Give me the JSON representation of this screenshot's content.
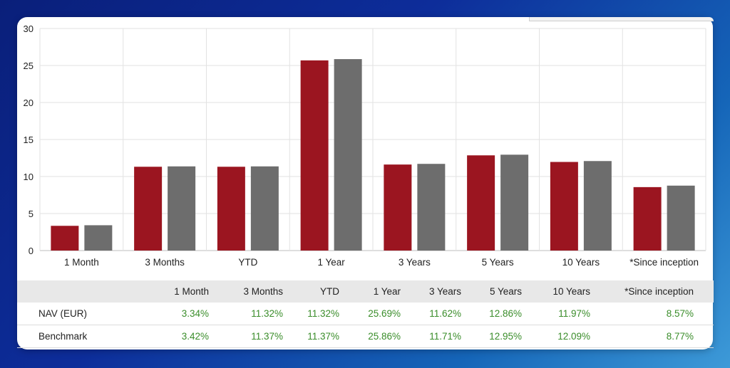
{
  "chart_data": {
    "type": "bar",
    "categories": [
      "1 Month",
      "3 Months",
      "YTD",
      "1 Year",
      "3 Years",
      "5 Years",
      "10 Years",
      "*Since inception"
    ],
    "series": [
      {
        "values": [
          3.34,
          11.32,
          11.32,
          25.69,
          11.62,
          12.86,
          11.97,
          8.57
        ],
        "color": "#9b1520"
      },
      {
        "values": [
          3.42,
          11.37,
          11.37,
          25.86,
          11.71,
          12.95,
          12.09,
          8.77
        ],
        "color": "#6d6d6d"
      }
    ],
    "ylim": [
      0,
      30
    ],
    "yticks": [
      "0",
      "5",
      "10",
      "15",
      "20",
      "25",
      "30"
    ],
    "grid": true,
    "legend": "none"
  },
  "table": {
    "headers": [
      "",
      "1 Month",
      "3 Months",
      "YTD",
      "1 Year",
      "3 Years",
      "5 Years",
      "10 Years",
      "*Since inception"
    ],
    "rows": [
      {
        "label": "NAV (EUR)",
        "values": [
          "3.34%",
          "11.32%",
          "11.32%",
          "25.69%",
          "11.62%",
          "12.86%",
          "11.97%",
          "8.57%"
        ]
      },
      {
        "label": "Benchmark",
        "values": [
          "3.42%",
          "11.37%",
          "11.37%",
          "25.86%",
          "11.71%",
          "12.95%",
          "12.09%",
          "8.77%"
        ]
      }
    ]
  },
  "colors": {
    "value_text": "#3a8d2a",
    "header_bg": "#e8e8e8"
  }
}
